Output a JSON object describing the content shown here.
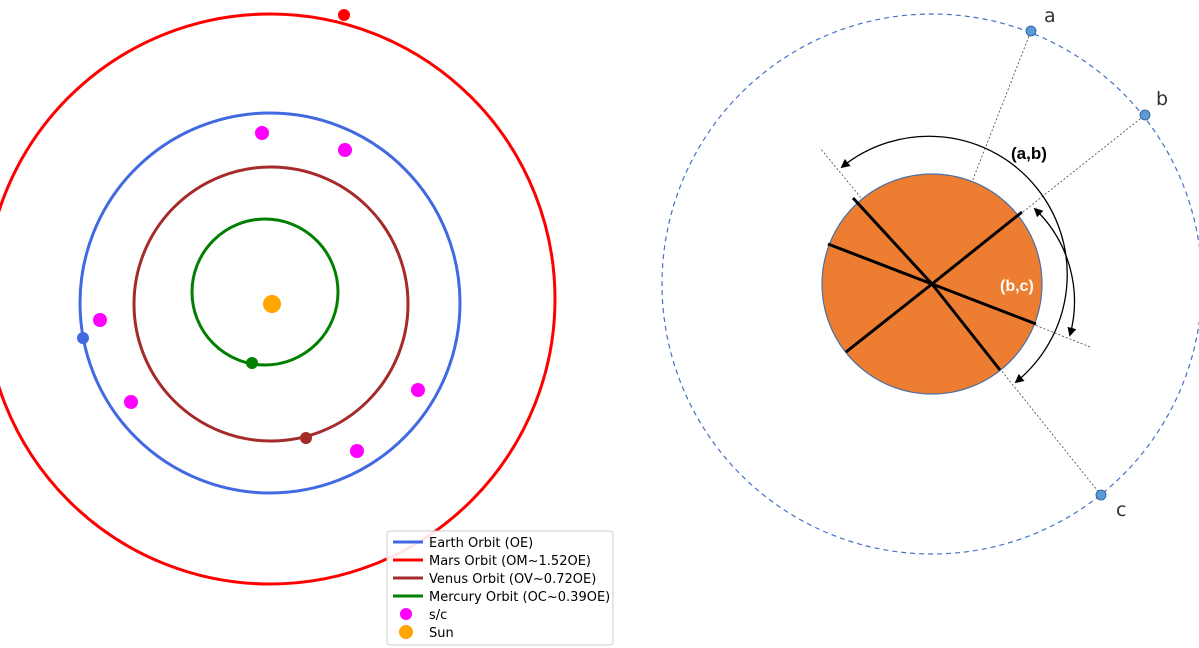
{
  "colors": {
    "earth": "#4169e1",
    "mars": "#ff0000",
    "venus": "#a52a2a",
    "mercury": "#008000",
    "sc": "#ff00ff",
    "sun": "#ffa500",
    "planet_disc": "#ed7d31",
    "planet_outline": "#4a6fa5",
    "dashed_orbit": "#4472c4",
    "marker": "#5b9bd5"
  },
  "legend": {
    "earth": "Earth Orbit (OE)",
    "mars": "Mars Orbit (OM~1.52OE)",
    "venus": "Venus Orbit (OV~0.72OE)",
    "mercury": "Mercury Orbit (OC~0.39OE)",
    "sc": "s/c",
    "sun": "Sun"
  },
  "right_diagram": {
    "point_a": "a",
    "point_b": "b",
    "point_c": "c",
    "arc_ab": "(a,b)",
    "arc_bc": "(b,c)"
  }
}
